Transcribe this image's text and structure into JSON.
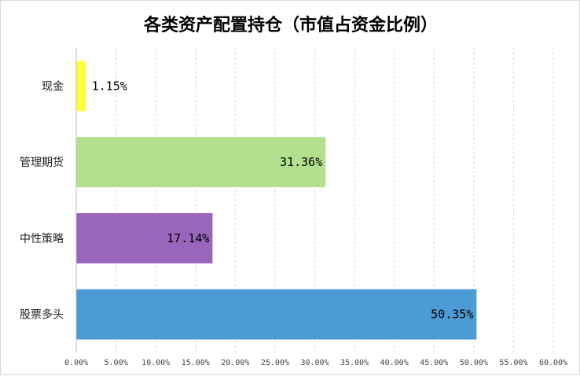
{
  "chart_data": {
    "type": "bar",
    "orientation": "horizontal",
    "title": "各类资产配置持仓（市值占资金比例）",
    "categories": [
      "现金",
      "管理期货",
      "中性策略",
      "股票多头"
    ],
    "values": [
      1.15,
      31.36,
      17.14,
      50.35
    ],
    "value_labels": [
      "1.15%",
      "31.36%",
      "17.14%",
      "50.35%"
    ],
    "colors": [
      "#ffff33",
      "#b3e08c",
      "#9966bb",
      "#4c9bd5"
    ],
    "xlim": [
      0,
      60
    ],
    "xticks": [
      0,
      5,
      10,
      15,
      20,
      25,
      30,
      35,
      40,
      45,
      50,
      55,
      60
    ],
    "xtick_labels": [
      "0.00%",
      "5.00%",
      "10.00%",
      "15.00%",
      "20.00%",
      "25.00%",
      "30.00%",
      "35.00%",
      "40.00%",
      "45.00%",
      "50.00%",
      "55.00%",
      "60.00%"
    ],
    "xlabel": "",
    "ylabel": "",
    "grid": true,
    "legend": "none"
  }
}
